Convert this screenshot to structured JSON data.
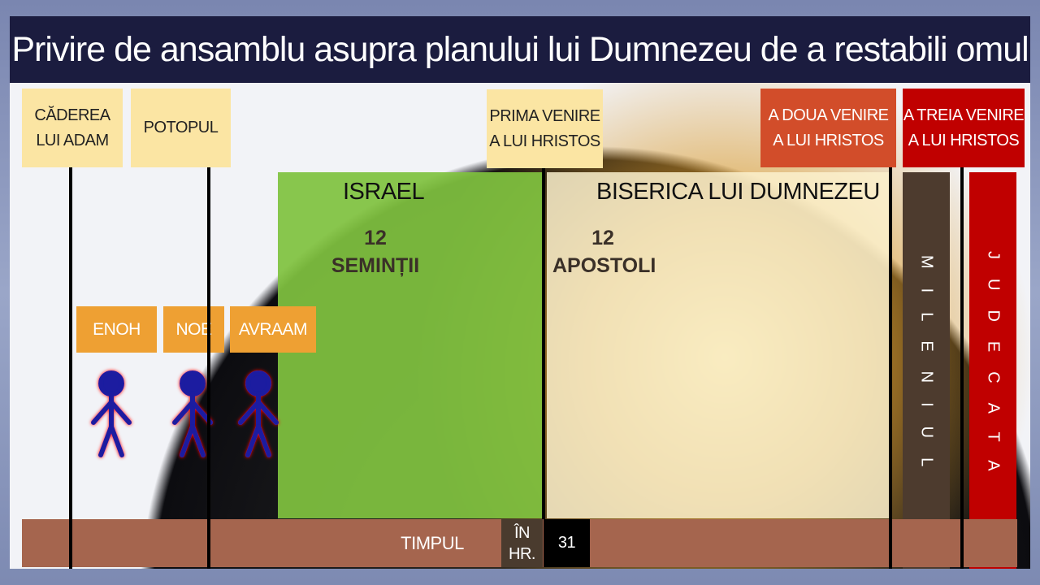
{
  "title": "Privire de ansamblu asupra planului lui Dumnezeu de a restabili omul",
  "events": {
    "adam": [
      "CĂDEREA",
      "LUI ADAM"
    ],
    "potop": "POTOPUL",
    "prima": [
      "PRIMA VENIRE",
      "A LUI HRISTOS"
    ],
    "doua": [
      "A DOUA VENIRE",
      "A LUI HRISTOS"
    ],
    "treia": [
      "A TREIA VENIRE",
      "A LUI HRISTOS"
    ]
  },
  "periods": {
    "israel": {
      "title": "ISRAEL",
      "num": "12",
      "label": "SEMINȚII"
    },
    "biserica": {
      "title": "BISERICA LUI DUMNEZEU",
      "num": "12",
      "label": "APOSTOLI"
    },
    "mileniul": "MILENIUL",
    "judecata": "JUDECATA"
  },
  "people": [
    "ENOH",
    "NOE",
    "AVRAAM"
  ],
  "timeline": {
    "label": "TIMPUL",
    "era": [
      "ÎN",
      "HR."
    ],
    "year": "31"
  },
  "colors": {
    "title_bg": "#1b1c3f",
    "israel": "#80c240",
    "biserica": "#fcf1ce",
    "mileniul": "#4d3b2e",
    "judecata": "#c00000",
    "doua": "#d24d2a",
    "timebar": "#a5654e",
    "people_box": "#eea033"
  }
}
